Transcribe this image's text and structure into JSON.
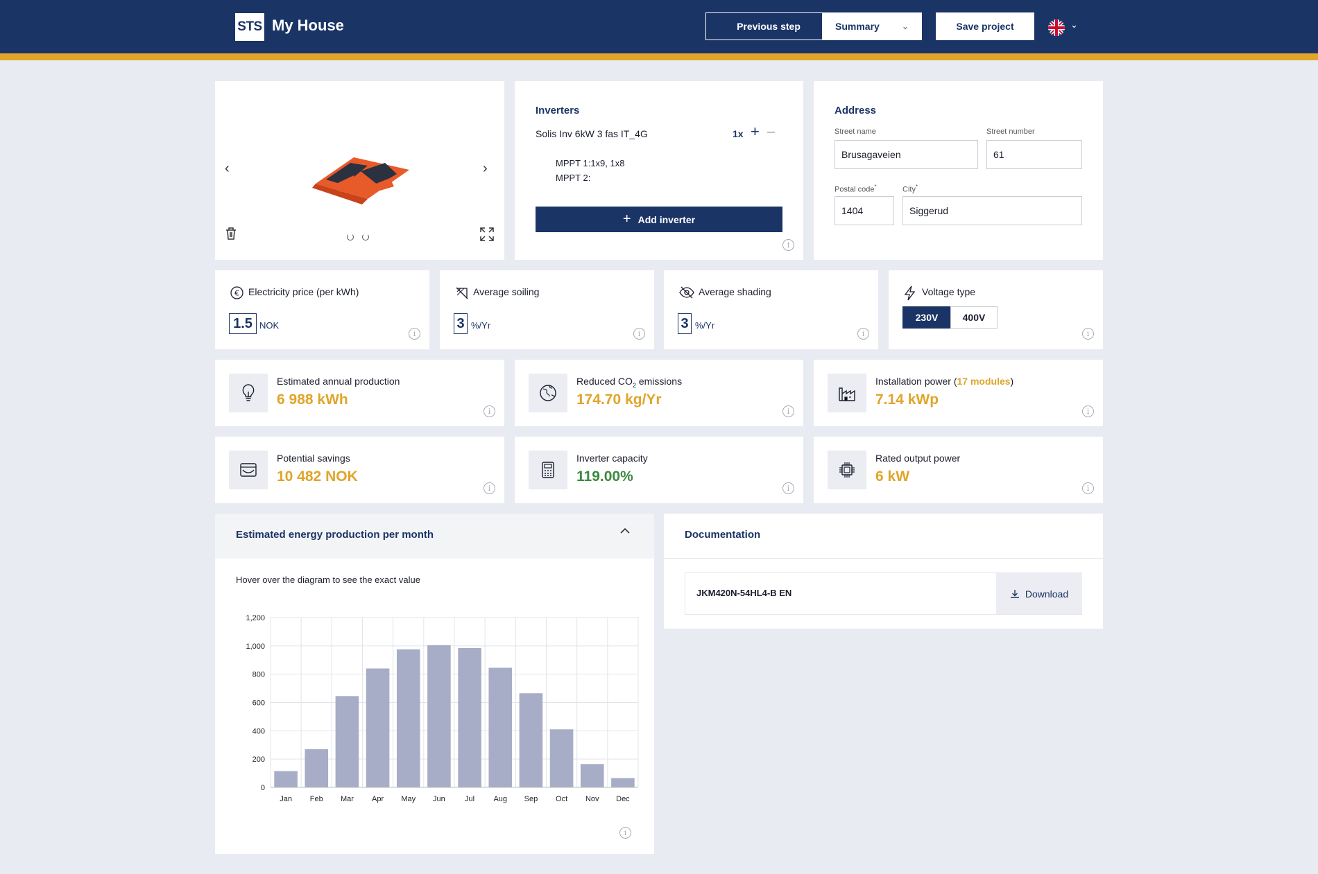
{
  "header": {
    "logo": "STS",
    "title": "My House",
    "previous_step": "Previous step",
    "summary": "Summary",
    "save_project": "Save project"
  },
  "viewer": {},
  "inverters": {
    "title": "Inverters",
    "item_name": "Solis Inv 6kW 3 fas IT_4G",
    "quantity": "1x",
    "mppt1": "MPPT 1:1x9, 1x8",
    "mppt2": "MPPT 2:",
    "add_label": "Add inverter"
  },
  "address": {
    "title": "Address",
    "street_name_label": "Street name",
    "street_name": "Brusagaveien",
    "street_number_label": "Street number",
    "street_number": "61",
    "postal_code_label": "Postal code",
    "postal_code": "1404",
    "city_label": "City",
    "city": "Siggerud",
    "required_mark": "*"
  },
  "settings": {
    "electricity": {
      "label": "Electricity price (per kWh)",
      "value": "1.5",
      "unit": "NOK"
    },
    "soiling": {
      "label": "Average soiling",
      "value": "3",
      "unit": "%/Yr"
    },
    "shading": {
      "label": "Average shading",
      "value": "3",
      "unit": "%/Yr"
    },
    "voltage": {
      "label": "Voltage type",
      "opt1": "230V",
      "opt2": "400V",
      "selected": "230V"
    }
  },
  "stats": {
    "annual_production": {
      "label": "Estimated annual production",
      "value": "6 988 kWh"
    },
    "co2": {
      "label_pre": "Reduced CO",
      "label_sub": "2",
      "label_post": " emissions",
      "value": "174.70 kg/Yr"
    },
    "installation_power": {
      "label_pre": "Installation power (",
      "modules": "17 modules",
      "label_post": ")",
      "value": "7.14 kWp"
    },
    "savings": {
      "label": "Potential savings",
      "value": "10 482 NOK"
    },
    "inverter_capacity": {
      "label": "Inverter capacity",
      "value": "119.00%"
    },
    "rated_output": {
      "label": "Rated output power",
      "value": "6 kW"
    }
  },
  "chart_panel": {
    "title": "Estimated energy production per month",
    "hint": "Hover over the diagram to see the exact value"
  },
  "chart_data": {
    "type": "bar",
    "categories": [
      "Jan",
      "Feb",
      "Mar",
      "Apr",
      "May",
      "Jun",
      "Jul",
      "Aug",
      "Sep",
      "Oct",
      "Nov",
      "Dec"
    ],
    "values": [
      115,
      270,
      645,
      840,
      975,
      1005,
      985,
      845,
      665,
      410,
      165,
      65
    ],
    "ylim": [
      0,
      1200
    ],
    "yticks": [
      "0",
      "200",
      "400",
      "600",
      "800",
      "1,000",
      "1,200"
    ],
    "ytick_values": [
      0,
      200,
      400,
      600,
      800,
      1000,
      1200
    ],
    "bar_color": "#a7adc6",
    "grid": true
  },
  "documentation": {
    "title": "Documentation",
    "doc_name": "JKM420N-54HL4-B EN",
    "download": "Download"
  },
  "colors": {
    "brand": "#1b3466",
    "accent": "#e0a52a",
    "positive": "#3c8a3f"
  }
}
